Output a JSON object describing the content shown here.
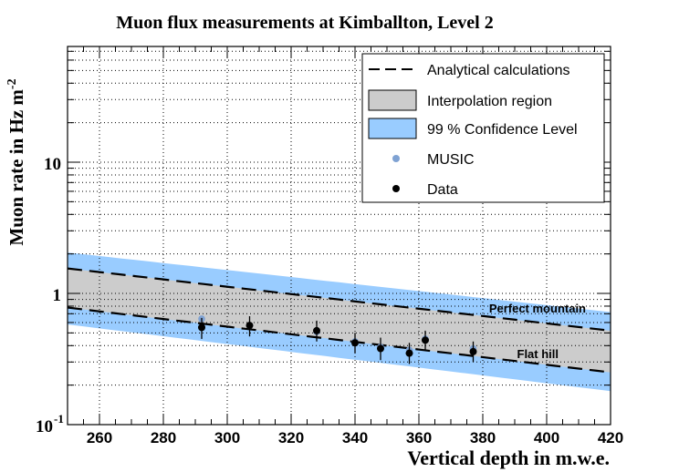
{
  "chart_data": {
    "type": "line",
    "title": "Muon flux measurements at Kimballton, Level 2",
    "xlabel": "Vertical depth in m.w.e.",
    "ylabel": "Muon rate in Hz m",
    "ylabel_sup": "-2",
    "xlim": [
      250,
      420
    ],
    "ylim": [
      0.1,
      80
    ],
    "yscale": "log",
    "grid": true,
    "x_ticks": [
      260,
      280,
      300,
      320,
      340,
      360,
      380,
      400,
      420
    ],
    "y_tick_labels": {
      "ten": "10",
      "one": "1",
      "tenth_base": "10",
      "tenth_exp": "-1"
    },
    "colors": {
      "confidence": "#99ccff",
      "interpolation": "#cccccc",
      "music": "#7fa2d3",
      "data": "#000000",
      "line": "#000000"
    },
    "legend": {
      "position": "top-right",
      "entries": [
        {
          "label": "Analytical calculations",
          "kind": "dashed-line"
        },
        {
          "label": "Interpolation region",
          "kind": "gray-box"
        },
        {
          "label": "99 % Confidence Level",
          "kind": "blue-box"
        },
        {
          "label": "MUSIC",
          "kind": "blue-marker"
        },
        {
          "label": "Data",
          "kind": "black-marker"
        }
      ]
    },
    "annotations": {
      "upper": "Perfect mountain",
      "lower": "Flat hill"
    },
    "bands": {
      "x": [
        250,
        420
      ],
      "confidence_upper": [
        2.05,
        0.72
      ],
      "confidence_lower": [
        0.58,
        0.18
      ],
      "perfect_mountain": [
        1.55,
        0.52
      ],
      "flat_hill": [
        0.78,
        0.25
      ]
    },
    "series": [
      {
        "name": "MUSIC",
        "points": [
          {
            "x": 292,
            "y": 0.64
          },
          {
            "x": 307,
            "y": 0.57
          },
          {
            "x": 328,
            "y": 0.51
          },
          {
            "x": 340,
            "y": 0.43
          },
          {
            "x": 348,
            "y": 0.39
          },
          {
            "x": 357,
            "y": 0.37
          },
          {
            "x": 362,
            "y": 0.45
          },
          {
            "x": 377,
            "y": 0.38
          }
        ]
      },
      {
        "name": "Data",
        "points": [
          {
            "x": 292,
            "y": 0.55,
            "err_lo": 0.1,
            "err_hi": 0.1
          },
          {
            "x": 307,
            "y": 0.57,
            "err_lo": 0.1,
            "err_hi": 0.1
          },
          {
            "x": 328,
            "y": 0.52,
            "err_lo": 0.09,
            "err_hi": 0.1
          },
          {
            "x": 340,
            "y": 0.42,
            "err_lo": 0.07,
            "err_hi": 0.08
          },
          {
            "x": 348,
            "y": 0.38,
            "err_lo": 0.07,
            "err_hi": 0.08
          },
          {
            "x": 357,
            "y": 0.35,
            "err_lo": 0.06,
            "err_hi": 0.07
          },
          {
            "x": 362,
            "y": 0.44,
            "err_lo": 0.07,
            "err_hi": 0.08
          },
          {
            "x": 377,
            "y": 0.36,
            "err_lo": 0.06,
            "err_hi": 0.07
          }
        ]
      }
    ]
  }
}
